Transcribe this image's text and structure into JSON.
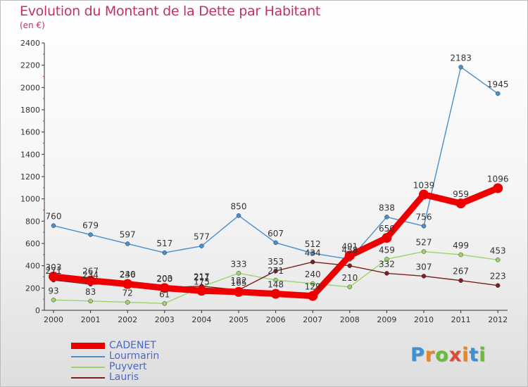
{
  "title": "Evolution du Montant de la Dette par Habitant",
  "subtitle": "(en €)",
  "logo": {
    "letters": [
      "P",
      "r",
      "o",
      "x",
      "i",
      "t",
      "i"
    ],
    "colors": [
      "#3d8fd6",
      "#e9852b",
      "#6cba3a",
      "#e04a34",
      "#e9852b",
      "#3d8fd6",
      "#6cba3a"
    ]
  },
  "chart_data": {
    "type": "line",
    "x": [
      "2000",
      "2001",
      "2002",
      "2003",
      "2004",
      "2005",
      "2006",
      "2007",
      "2008",
      "2009",
      "2010",
      "2011",
      "2012"
    ],
    "ylim": [
      0,
      2400
    ],
    "yticks": [
      "0",
      "200",
      "400",
      "600",
      "800",
      "1000",
      "1200",
      "1400",
      "1600",
      "1800",
      "2000",
      "2200",
      "2400"
    ],
    "grid": false,
    "legend_position": "bottom-left",
    "series": [
      {
        "name": "Lourmarin",
        "color": "#4a8ecb",
        "values": [
          760,
          679,
          597,
          517,
          577,
          850,
          607,
          512,
          458,
          838,
          756,
          2183,
          1945
        ],
        "labels": [
          "760",
          "679",
          "597",
          "517",
          "577",
          "850",
          "607",
          "512",
          "458",
          "838",
          "756",
          "2183",
          "1945"
        ]
      },
      {
        "name": "Puyvert",
        "color": "#9ad46a",
        "values": [
          93,
          83,
          72,
          61,
          211,
          333,
          271,
          240,
          210,
          459,
          527,
          499,
          453
        ],
        "labels": [
          "93",
          "83",
          "72",
          "61",
          "211",
          "333",
          "271",
          "240",
          "210",
          "459",
          "527",
          "499",
          "453"
        ]
      },
      {
        "name": "Lauris",
        "color": "#7a2020",
        "values": [
          271,
          234,
          240,
          203,
          217,
          182,
          353,
          434,
          400,
          332,
          307,
          267,
          223
        ],
        "labels": [
          "271",
          "234",
          "240",
          "203",
          "217",
          "182",
          "353",
          "434",
          "",
          "332",
          "307",
          "267",
          "223"
        ]
      },
      {
        "name": "CADENET",
        "color": "#ee0000",
        "values": [
          303,
          267,
          236,
          200,
          175,
          165,
          148,
          129,
          491,
          650,
          1039,
          959,
          1096
        ],
        "labels": [
          "303",
          "267",
          "236",
          "200",
          "175",
          "165",
          "148",
          "129",
          "491",
          "650",
          "1039",
          "959",
          "1096"
        ]
      }
    ]
  }
}
